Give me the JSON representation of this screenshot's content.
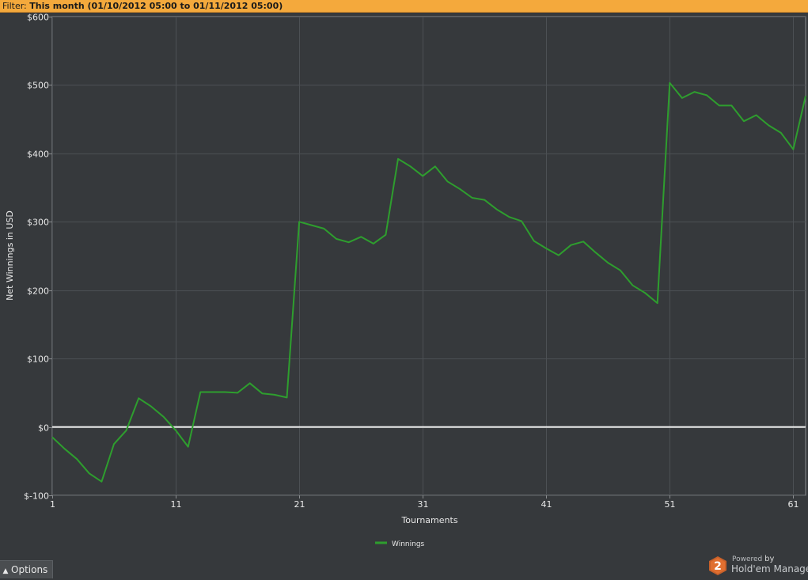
{
  "filter": {
    "label": "Filter:",
    "value": "This month (01/10/2012 05:00 to 01/11/2012 05:00)"
  },
  "footer": {
    "options_label": "Options",
    "powered_prefix": "Powered",
    "powered_by": "by",
    "brand": "Hold'em Manager",
    "brand_badge": "2"
  },
  "chart_data": {
    "type": "line",
    "xlabel": "Tournaments",
    "ylabel": "Net Winnings in USD",
    "xlim": [
      1,
      62
    ],
    "ylim": [
      -100,
      600
    ],
    "x_ticks": [
      1,
      11,
      21,
      31,
      41,
      51,
      61
    ],
    "y_ticks": [
      -100,
      0,
      100,
      200,
      300,
      400,
      500,
      600
    ],
    "y_tick_labels": [
      "$-100",
      "$0",
      "$100",
      "$200",
      "$300",
      "$400",
      "$500",
      "$600"
    ],
    "grid": true,
    "zero_line": true,
    "legend_position": "bottom-center",
    "series": [
      {
        "name": "Winnings",
        "color": "#2e9e2e",
        "x": [
          1,
          2,
          3,
          4,
          5,
          6,
          7,
          8,
          9,
          10,
          11,
          12,
          13,
          14,
          15,
          16,
          17,
          18,
          19,
          20,
          21,
          22,
          23,
          24,
          25,
          26,
          27,
          28,
          29,
          30,
          31,
          32,
          33,
          34,
          35,
          36,
          37,
          38,
          39,
          40,
          41,
          42,
          43,
          44,
          45,
          46,
          47,
          48,
          49,
          50,
          51,
          52,
          53,
          54,
          55,
          56,
          57,
          58,
          59,
          60,
          61,
          62
        ],
        "values": [
          -15,
          -32,
          -47,
          -68,
          -80,
          -25,
          -5,
          42,
          30,
          15,
          -5,
          -29,
          51,
          51,
          51,
          50,
          64,
          49,
          47,
          43,
          300,
          295,
          290,
          275,
          270,
          278,
          268,
          281,
          392,
          381,
          367,
          381,
          359,
          348,
          335,
          332,
          318,
          307,
          301,
          272,
          261,
          251,
          266,
          271,
          255,
          240,
          229,
          207,
          196,
          181,
          503,
          481,
          490,
          485,
          470,
          470,
          447,
          456,
          441,
          430,
          406,
          484
        ]
      }
    ]
  }
}
